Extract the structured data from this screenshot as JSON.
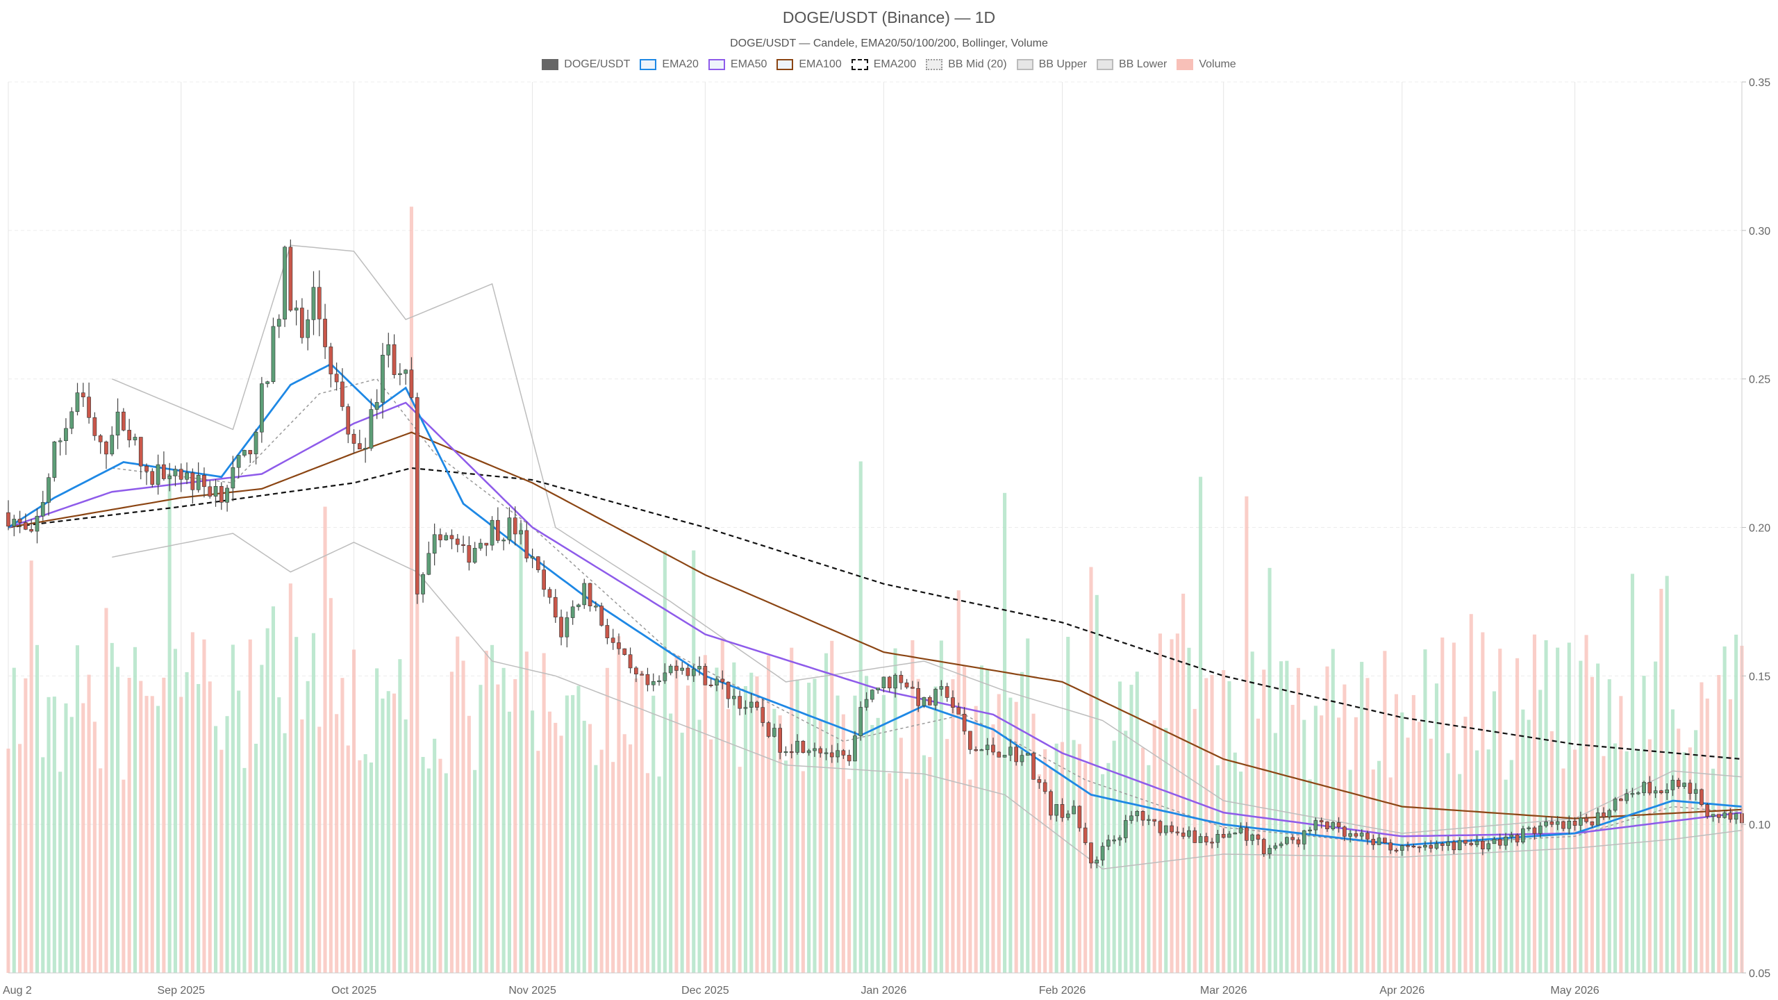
{
  "chart_data": {
    "type": "candlestick",
    "title": "DOGE/USDT (Binance) — 1D",
    "subtitle": "DOGE/USDT — Candele, EMA20/50/100/200, Bollinger, Volume",
    "legend": [
      {
        "name": "DOGE/USDT",
        "color": "#666666",
        "style": "solid"
      },
      {
        "name": "EMA20",
        "color": "#1e88e5",
        "style": "line"
      },
      {
        "name": "EMA50",
        "color": "#8e5bea",
        "style": "line"
      },
      {
        "name": "EMA100",
        "color": "#8b4513",
        "style": "line"
      },
      {
        "name": "EMA200",
        "color": "#111111",
        "style": "dashed"
      },
      {
        "name": "BB Mid (20)",
        "color": "#999999",
        "style": "dotted"
      },
      {
        "name": "BB Upper",
        "color": "#bbbbbb",
        "style": "line"
      },
      {
        "name": "BB Lower",
        "color": "#bbbbbb",
        "style": "line"
      },
      {
        "name": "Volume",
        "color": "#f8c0b8",
        "style": "solid"
      }
    ],
    "x_range": [
      "2025-08-02",
      "2026-05-30"
    ],
    "x_ticks": [
      {
        "date": "2025-08-02",
        "label": "Aug 2"
      },
      {
        "date": "2025-09-01",
        "label": "Sep 2025"
      },
      {
        "date": "2025-10-01",
        "label": "Oct 2025"
      },
      {
        "date": "2025-11-01",
        "label": "Nov 2025"
      },
      {
        "date": "2025-12-01",
        "label": "Dec 2025"
      },
      {
        "date": "2026-01-01",
        "label": "Jan 2026"
      },
      {
        "date": "2026-02-01",
        "label": "Feb 2026"
      },
      {
        "date": "2026-03-01",
        "label": "Mar 2026"
      },
      {
        "date": "2026-04-01",
        "label": "Apr 2026"
      },
      {
        "date": "2026-05-01",
        "label": "May 2026"
      }
    ],
    "y_axis": {
      "position": "right",
      "ylim": [
        0.05,
        0.35
      ],
      "ticks": [
        "0.05",
        "0.10",
        "0.15",
        "0.20",
        "0.25",
        "0.30",
        "0.35"
      ]
    },
    "colors": {
      "up": "#5d9e77",
      "down": "#c9574a",
      "wick": "#444444",
      "vol_up": "#a8e0c0",
      "vol_down": "#f8bdb5"
    },
    "grid": true,
    "price_waypoints": [
      [
        "2025-08-02",
        0.205
      ],
      [
        "2025-08-06",
        0.195
      ],
      [
        "2025-08-10",
        0.225
      ],
      [
        "2025-08-14",
        0.245
      ],
      [
        "2025-08-18",
        0.225
      ],
      [
        "2025-08-22",
        0.238
      ],
      [
        "2025-08-26",
        0.215
      ],
      [
        "2025-08-30",
        0.222
      ],
      [
        "2025-09-04",
        0.214
      ],
      [
        "2025-09-08",
        0.213
      ],
      [
        "2025-09-12",
        0.222
      ],
      [
        "2025-09-16",
        0.25
      ],
      [
        "2025-09-19",
        0.288
      ],
      [
        "2025-09-22",
        0.262
      ],
      [
        "2025-09-24",
        0.278
      ],
      [
        "2025-09-27",
        0.255
      ],
      [
        "2025-10-01",
        0.225
      ],
      [
        "2025-10-04",
        0.235
      ],
      [
        "2025-10-06",
        0.26
      ],
      [
        "2025-10-09",
        0.255
      ],
      [
        "2025-10-11",
        0.242
      ],
      [
        "2025-10-12",
        0.175
      ],
      [
        "2025-10-16",
        0.2
      ],
      [
        "2025-10-20",
        0.19
      ],
      [
        "2025-10-25",
        0.2
      ],
      [
        "2025-10-29",
        0.2
      ],
      [
        "2025-11-02",
        0.183
      ],
      [
        "2025-11-06",
        0.165
      ],
      [
        "2025-11-10",
        0.18
      ],
      [
        "2025-11-14",
        0.165
      ],
      [
        "2025-11-18",
        0.15
      ],
      [
        "2025-11-22",
        0.145
      ],
      [
        "2025-11-26",
        0.155
      ],
      [
        "2025-12-01",
        0.15
      ],
      [
        "2025-12-06",
        0.143
      ],
      [
        "2025-12-10",
        0.137
      ],
      [
        "2025-12-14",
        0.127
      ],
      [
        "2025-12-20",
        0.127
      ],
      [
        "2025-12-26",
        0.12
      ],
      [
        "2025-12-29",
        0.145
      ],
      [
        "2026-01-04",
        0.15
      ],
      [
        "2026-01-08",
        0.14
      ],
      [
        "2026-01-12",
        0.145
      ],
      [
        "2026-01-16",
        0.125
      ],
      [
        "2026-01-22",
        0.125
      ],
      [
        "2026-01-26",
        0.122
      ],
      [
        "2026-01-30",
        0.105
      ],
      [
        "2026-02-03",
        0.104
      ],
      [
        "2026-02-06",
        0.088
      ],
      [
        "2026-02-10",
        0.095
      ],
      [
        "2026-02-14",
        0.104
      ],
      [
        "2026-02-16",
        0.1
      ],
      [
        "2026-02-22",
        0.098
      ],
      [
        "2026-02-26",
        0.094
      ],
      [
        "2026-03-04",
        0.098
      ],
      [
        "2026-03-08",
        0.092
      ],
      [
        "2026-03-14",
        0.095
      ],
      [
        "2026-03-18",
        0.101
      ],
      [
        "2026-03-22",
        0.096
      ],
      [
        "2026-03-28",
        0.094
      ],
      [
        "2026-04-02",
        0.091
      ],
      [
        "2026-04-10",
        0.093
      ],
      [
        "2026-04-18",
        0.094
      ],
      [
        "2026-04-25",
        0.099
      ],
      [
        "2026-05-01",
        0.099
      ],
      [
        "2026-05-06",
        0.104
      ],
      [
        "2026-05-10",
        0.112
      ],
      [
        "2026-05-16",
        0.113
      ],
      [
        "2026-05-20",
        0.115
      ],
      [
        "2026-05-24",
        0.104
      ],
      [
        "2026-05-30",
        0.102
      ]
    ],
    "ema200_waypoints": [
      [
        "2025-08-02",
        0.2
      ],
      [
        "2025-09-01",
        0.207
      ],
      [
        "2025-10-01",
        0.215
      ],
      [
        "2025-10-11",
        0.22
      ],
      [
        "2025-11-01",
        0.216
      ],
      [
        "2025-12-01",
        0.2
      ],
      [
        "2026-01-01",
        0.181
      ],
      [
        "2026-02-01",
        0.168
      ],
      [
        "2026-03-01",
        0.15
      ],
      [
        "2026-04-01",
        0.136
      ],
      [
        "2026-05-01",
        0.127
      ],
      [
        "2026-05-30",
        0.122
      ]
    ],
    "ema100_waypoints": [
      [
        "2025-08-02",
        0.2
      ],
      [
        "2025-09-01",
        0.21
      ],
      [
        "2025-09-15",
        0.213
      ],
      [
        "2025-10-01",
        0.225
      ],
      [
        "2025-10-11",
        0.232
      ],
      [
        "2025-11-01",
        0.215
      ],
      [
        "2025-12-01",
        0.184
      ],
      [
        "2026-01-01",
        0.158
      ],
      [
        "2026-02-01",
        0.148
      ],
      [
        "2026-03-01",
        0.122
      ],
      [
        "2026-04-01",
        0.106
      ],
      [
        "2026-05-01",
        0.102
      ],
      [
        "2026-05-30",
        0.105
      ]
    ],
    "ema50_waypoints": [
      [
        "2025-08-02",
        0.2
      ],
      [
        "2025-08-20",
        0.212
      ],
      [
        "2025-09-15",
        0.218
      ],
      [
        "2025-10-01",
        0.235
      ],
      [
        "2025-10-10",
        0.242
      ],
      [
        "2025-11-01",
        0.2
      ],
      [
        "2025-12-01",
        0.164
      ],
      [
        "2026-01-01",
        0.145
      ],
      [
        "2026-01-20",
        0.137
      ],
      [
        "2026-02-01",
        0.124
      ],
      [
        "2026-03-01",
        0.104
      ],
      [
        "2026-04-01",
        0.096
      ],
      [
        "2026-05-01",
        0.097
      ],
      [
        "2026-05-30",
        0.104
      ]
    ],
    "ema20_waypoints": [
      [
        "2025-08-02",
        0.2
      ],
      [
        "2025-08-10",
        0.21
      ],
      [
        "2025-08-22",
        0.222
      ],
      [
        "2025-09-08",
        0.217
      ],
      [
        "2025-09-20",
        0.248
      ],
      [
        "2025-09-27",
        0.255
      ],
      [
        "2025-10-05",
        0.24
      ],
      [
        "2025-10-10",
        0.247
      ],
      [
        "2025-10-20",
        0.208
      ],
      [
        "2025-11-01",
        0.19
      ],
      [
        "2025-11-10",
        0.177
      ],
      [
        "2025-12-01",
        0.15
      ],
      [
        "2025-12-28",
        0.13
      ],
      [
        "2026-01-08",
        0.14
      ],
      [
        "2026-01-20",
        0.132
      ],
      [
        "2026-02-06",
        0.11
      ],
      [
        "2026-03-01",
        0.1
      ],
      [
        "2026-04-01",
        0.093
      ],
      [
        "2026-05-01",
        0.097
      ],
      [
        "2026-05-18",
        0.108
      ],
      [
        "2026-05-30",
        0.106
      ]
    ],
    "bb_upper_waypoints": [
      [
        "2025-08-20",
        0.25
      ],
      [
        "2025-09-10",
        0.233
      ],
      [
        "2025-09-20",
        0.295
      ],
      [
        "2025-10-01",
        0.293
      ],
      [
        "2025-10-10",
        0.27
      ],
      [
        "2025-10-25",
        0.282
      ],
      [
        "2025-11-05",
        0.2
      ],
      [
        "2025-11-25",
        0.175
      ],
      [
        "2025-12-15",
        0.148
      ],
      [
        "2026-01-08",
        0.155
      ],
      [
        "2026-01-22",
        0.145
      ],
      [
        "2026-02-08",
        0.135
      ],
      [
        "2026-03-01",
        0.108
      ],
      [
        "2026-04-01",
        0.097
      ],
      [
        "2026-05-01",
        0.102
      ],
      [
        "2026-05-18",
        0.118
      ],
      [
        "2026-05-30",
        0.116
      ]
    ],
    "bb_lower_waypoints": [
      [
        "2025-08-20",
        0.19
      ],
      [
        "2025-09-10",
        0.198
      ],
      [
        "2025-09-20",
        0.185
      ],
      [
        "2025-10-01",
        0.195
      ],
      [
        "2025-10-12",
        0.185
      ],
      [
        "2025-10-25",
        0.155
      ],
      [
        "2025-11-05",
        0.15
      ],
      [
        "2025-11-25",
        0.135
      ],
      [
        "2025-12-15",
        0.12
      ],
      [
        "2026-01-08",
        0.117
      ],
      [
        "2026-01-22",
        0.11
      ],
      [
        "2026-02-08",
        0.085
      ],
      [
        "2026-03-01",
        0.09
      ],
      [
        "2026-04-01",
        0.089
      ],
      [
        "2026-05-01",
        0.092
      ],
      [
        "2026-05-18",
        0.095
      ],
      [
        "2026-05-30",
        0.098
      ]
    ],
    "bb_mid_waypoints": [
      [
        "2025-08-20",
        0.22
      ],
      [
        "2025-09-10",
        0.215
      ],
      [
        "2025-09-25",
        0.245
      ],
      [
        "2025-10-05",
        0.25
      ],
      [
        "2025-10-15",
        0.225
      ],
      [
        "2025-11-01",
        0.2
      ],
      [
        "2025-11-25",
        0.158
      ],
      [
        "2025-12-25",
        0.128
      ],
      [
        "2026-01-15",
        0.137
      ],
      [
        "2026-02-05",
        0.115
      ],
      [
        "2026-03-01",
        0.099
      ],
      [
        "2026-04-01",
        0.093
      ],
      [
        "2026-05-01",
        0.096
      ],
      [
        "2026-05-18",
        0.106
      ],
      [
        "2026-05-30",
        0.104
      ]
    ],
    "volume_ylim": [
      0,
      0.31
    ],
    "volume_note": "Volume bars scaled to price axis; tallest spike on 2025-10-11"
  }
}
